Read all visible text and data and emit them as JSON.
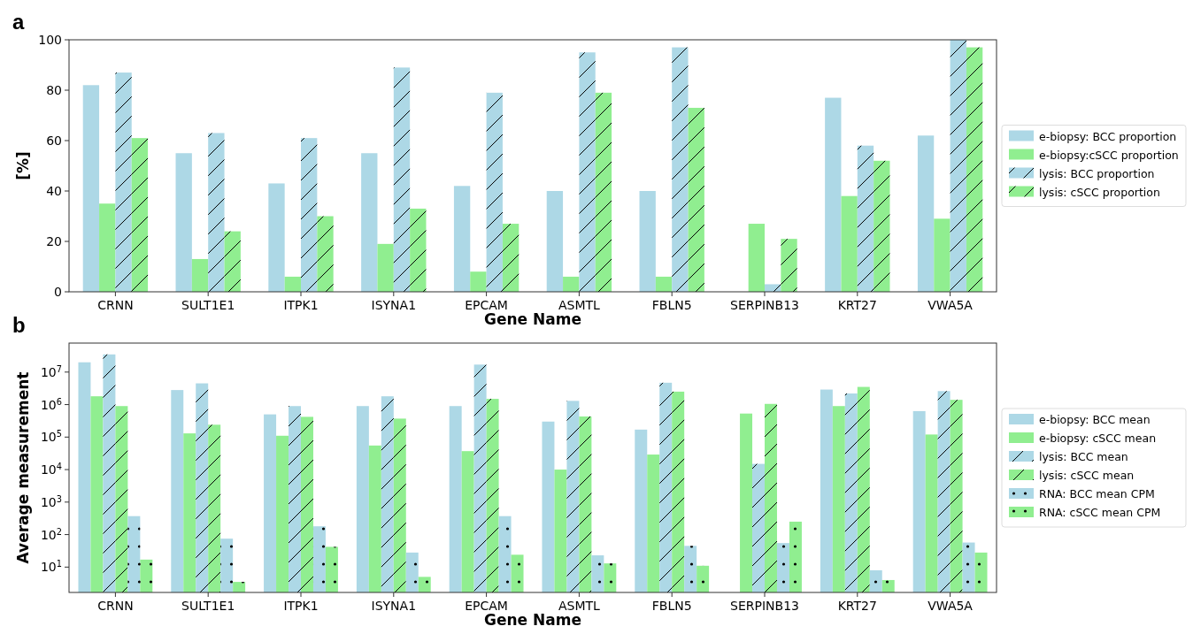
{
  "chart_data": [
    {
      "type": "bar",
      "title": "a",
      "xlabel": "Gene Name",
      "ylabel": "[%]",
      "categories": [
        "CRNN",
        "SULT1E1",
        "ITPK1",
        "ISYNA1",
        "EPCAM",
        "ASMTL",
        "FBLN5",
        "SERPINB13",
        "KRT27",
        "VWA5A"
      ],
      "ylim": [
        0,
        100
      ],
      "yticks": [
        0,
        20,
        40,
        60,
        80,
        100
      ],
      "legend": "right",
      "series": [
        {
          "name": "e-biopsy: BCC proportion",
          "color": "#add8e6",
          "values": [
            82,
            55,
            43,
            55,
            42,
            40,
            40,
            0,
            77,
            62
          ]
        },
        {
          "name": "e-biopsy:cSCC proportion",
          "color": "#90ee90",
          "values": [
            35,
            13,
            6,
            19,
            8,
            6,
            6,
            27,
            38,
            29
          ]
        },
        {
          "name": "lysis: BCC proportion",
          "color": "#add8e6",
          "values": [
            87,
            63,
            61,
            89,
            79,
            95,
            97,
            3,
            58,
            100
          ]
        },
        {
          "name": "lysis: cSCC proportion",
          "color": "#90ee90",
          "values": [
            61,
            24,
            30,
            33,
            27,
            79,
            73,
            21,
            52,
            97
          ]
        }
      ]
    },
    {
      "type": "bar",
      "title": "b",
      "xlabel": "Gene Name",
      "ylabel": "Average measurement",
      "categories": [
        "CRNN",
        "SULT1E1",
        "ITPK1",
        "ISYNA1",
        "EPCAM",
        "ASMTL",
        "FBLN5",
        "SERPINB13",
        "KRT27",
        "VWA5A"
      ],
      "log": true,
      "ylim": [
        1.66,
        78000000
      ],
      "yticks": [
        {
          "value": 10,
          "label": "10$^{1}$"
        },
        {
          "value": 100,
          "label": "10$^{2}$"
        },
        {
          "value": 1000,
          "label": "10$^{3}$"
        },
        {
          "value": 10000,
          "label": "10$^{4}$"
        },
        {
          "value": 100000,
          "label": "10$^{5}$"
        },
        {
          "value": 1000000,
          "label": "10$^{6}$"
        },
        {
          "value": 10000000,
          "label": "10$^{7}$"
        }
      ],
      "legend": "right",
      "series": [
        {
          "name": "e-biopsy: BCC mean",
          "color": "#add8e6",
          "values": [
            20000000,
            2800000,
            500000,
            900000,
            900000,
            300000,
            170000,
            null,
            2900000,
            630000
          ]
        },
        {
          "name": "e-biopsy: cSCC mean",
          "color": "#90ee90",
          "values": [
            1800000,
            130000,
            110000,
            55000,
            37000,
            10000,
            29000,
            530000,
            900000,
            120000
          ]
        },
        {
          "name": "lysis: BCC mean",
          "color": "#add8e6",
          "values": [
            35000000,
            4500000,
            900000,
            1800000,
            17000000,
            1300000,
            4700000,
            15000,
            2200000,
            2600000
          ]
        },
        {
          "name": "lysis: cSCC mean",
          "color": "#90ee90",
          "values": [
            900000,
            240000,
            420000,
            370000,
            1500000,
            430000,
            2500000,
            1050000,
            3500000,
            1400000
          ]
        },
        {
          "name": "RNA: BCC mean CPM",
          "color": "#add8e6",
          "values": [
            370,
            75,
            180,
            28,
            370,
            23,
            45,
            55,
            8,
            57
          ]
        },
        {
          "name": "RNA: cSCC mean CPM",
          "color": "#90ee90",
          "values": [
            17,
            3.5,
            42,
            5,
            24,
            13,
            11,
            250,
            4,
            28
          ]
        }
      ]
    }
  ]
}
